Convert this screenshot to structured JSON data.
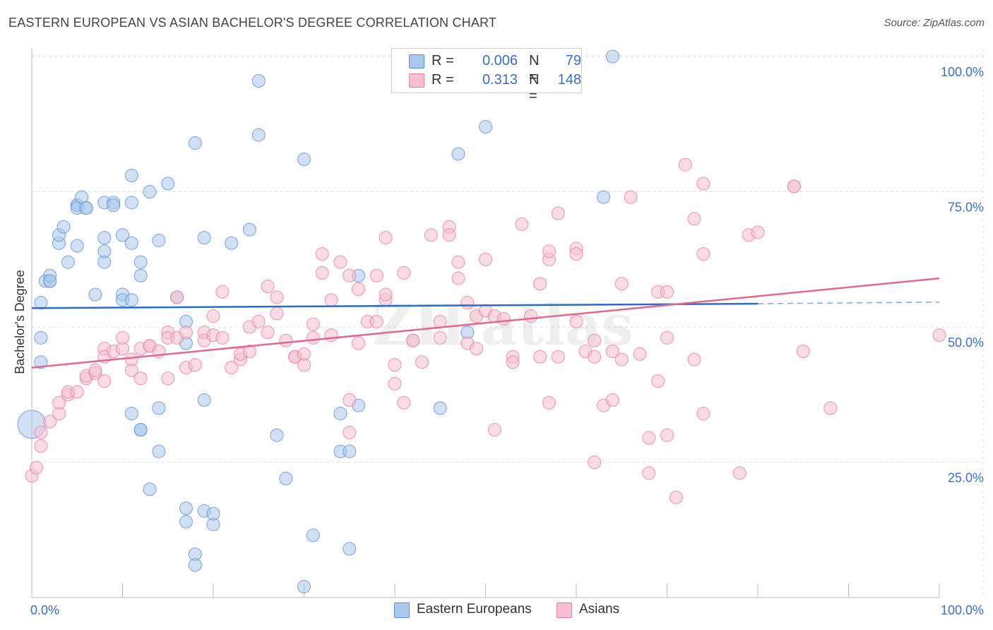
{
  "title": "EASTERN EUROPEAN VS ASIAN BACHELOR'S DEGREE CORRELATION CHART",
  "source": "Source: ZipAtlas.com",
  "colors": {
    "blue_fill": "#aac8ee",
    "blue_stroke": "#5b8fd6",
    "blue_line": "#2b6cc9",
    "pink_fill": "#f7bfd0",
    "pink_stroke": "#e97a9d",
    "pink_line": "#e06891",
    "tick_label": "#3a6fc4",
    "grid": "#dddddd"
  },
  "legend": {
    "rows": [
      {
        "r_label": "R =",
        "r_value": "0.006",
        "n_label": "N =",
        "n_value": "79",
        "series": "blue"
      },
      {
        "r_label": "R =",
        "r_value": "0.313",
        "n_label": "N =",
        "n_value": "148",
        "series": "pink"
      }
    ]
  },
  "bottom_legend": {
    "eastern": "Eastern Europeans",
    "asians": "Asians"
  },
  "chart_data": {
    "type": "scatter",
    "title": "EASTERN EUROPEAN VS ASIAN BACHELOR'S DEGREE CORRELATION CHART",
    "xlabel": "",
    "ylabel": "Bachelor's Degree",
    "xlim": [
      0,
      100
    ],
    "ylim": [
      0,
      100
    ],
    "x_tick_labels": [
      {
        "value": 0,
        "label": "0.0%"
      },
      {
        "value": 100,
        "label": "100.0%"
      }
    ],
    "y_tick_labels": [
      {
        "value": 25,
        "label": "25.0%"
      },
      {
        "value": 50,
        "label": "50.0%"
      },
      {
        "value": 75,
        "label": "75.0%"
      },
      {
        "value": 100,
        "label": "100.0%"
      }
    ],
    "watermark": "ZIPatlas",
    "series": [
      {
        "name": "Eastern Europeans",
        "color": "blue",
        "trend": {
          "x0": 0,
          "y0": 53.5,
          "x1": 80,
          "y1": 54.3,
          "dash_to_x": 100,
          "dash_to_y": 54.6
        },
        "points": [
          [
            0,
            32,
            "big"
          ],
          [
            1,
            43.5
          ],
          [
            1,
            48
          ],
          [
            1,
            54.5
          ],
          [
            1.5,
            58.5
          ],
          [
            2,
            58.5
          ],
          [
            2,
            59.5
          ],
          [
            2,
            58.5
          ],
          [
            3,
            65.5
          ],
          [
            3,
            67
          ],
          [
            3.5,
            68.5
          ],
          [
            4,
            62
          ],
          [
            5,
            72.5
          ],
          [
            5,
            72.5
          ],
          [
            5,
            72
          ],
          [
            5,
            65
          ],
          [
            5.5,
            74
          ],
          [
            6,
            72
          ],
          [
            6,
            72
          ],
          [
            7,
            56
          ],
          [
            8,
            73
          ],
          [
            8,
            62
          ],
          [
            8,
            66.5
          ],
          [
            8,
            64
          ],
          [
            9,
            73
          ],
          [
            9,
            72.5
          ],
          [
            10,
            67
          ],
          [
            10,
            56
          ],
          [
            10,
            55
          ],
          [
            11,
            78
          ],
          [
            11,
            65.5
          ],
          [
            11,
            73
          ],
          [
            11,
            55
          ],
          [
            12,
            62
          ],
          [
            11,
            34
          ],
          [
            12,
            31
          ],
          [
            12,
            59.5
          ],
          [
            12,
            31
          ],
          [
            13,
            20
          ],
          [
            13,
            75
          ],
          [
            14,
            35
          ],
          [
            14,
            66
          ],
          [
            14,
            27
          ],
          [
            15,
            76.5
          ],
          [
            16,
            55.5
          ],
          [
            17,
            51
          ],
          [
            17,
            47
          ],
          [
            17,
            14
          ],
          [
            17,
            16.5
          ],
          [
            18,
            84
          ],
          [
            18,
            8
          ],
          [
            18,
            6
          ],
          [
            19,
            36.5
          ],
          [
            19,
            66.5
          ],
          [
            19,
            16
          ],
          [
            20,
            13.5
          ],
          [
            20,
            15.5
          ],
          [
            22,
            65.5
          ],
          [
            24,
            68
          ],
          [
            25,
            85.5
          ],
          [
            25,
            95.5
          ],
          [
            27,
            30
          ],
          [
            28,
            22
          ],
          [
            30,
            81
          ],
          [
            31,
            11.5
          ],
          [
            30,
            2
          ],
          [
            34,
            27
          ],
          [
            34,
            34
          ],
          [
            35,
            9
          ],
          [
            35,
            27
          ],
          [
            36,
            59.5
          ],
          [
            36,
            35.5
          ],
          [
            45,
            35
          ],
          [
            47,
            82
          ],
          [
            48,
            49
          ],
          [
            50,
            87
          ],
          [
            63,
            74
          ],
          [
            64,
            100
          ]
        ]
      },
      {
        "name": "Asians",
        "color": "pink",
        "trend": {
          "x0": 0,
          "y0": 42.5,
          "x1": 100,
          "y1": 59
        },
        "points": [
          [
            0,
            22.5
          ],
          [
            0.5,
            24
          ],
          [
            1,
            28
          ],
          [
            1,
            30.5
          ],
          [
            2,
            32.5
          ],
          [
            3,
            34
          ],
          [
            3,
            36
          ],
          [
            4,
            37.5
          ],
          [
            4,
            38
          ],
          [
            5,
            38
          ],
          [
            6,
            40.5
          ],
          [
            6,
            41
          ],
          [
            7,
            41.5
          ],
          [
            7,
            42
          ],
          [
            8,
            40
          ],
          [
            8,
            46
          ],
          [
            8,
            44.5
          ],
          [
            9,
            45.5
          ],
          [
            10,
            46
          ],
          [
            10,
            48
          ],
          [
            11,
            42
          ],
          [
            11,
            44
          ],
          [
            12,
            40.5
          ],
          [
            12,
            46
          ],
          [
            13,
            46.5
          ],
          [
            13,
            46.5
          ],
          [
            14,
            45.5
          ],
          [
            15,
            40.5
          ],
          [
            15,
            49
          ],
          [
            15,
            48
          ],
          [
            16,
            48
          ],
          [
            16,
            55.5
          ],
          [
            17,
            49
          ],
          [
            17,
            42.5
          ],
          [
            18,
            43
          ],
          [
            19,
            49
          ],
          [
            19,
            47.5
          ],
          [
            20,
            48.5
          ],
          [
            20,
            52
          ],
          [
            21,
            48
          ],
          [
            21,
            56.5
          ],
          [
            22,
            42.5
          ],
          [
            23,
            44
          ],
          [
            23,
            45
          ],
          [
            24,
            50
          ],
          [
            24,
            45.5
          ],
          [
            25,
            51
          ],
          [
            26,
            49
          ],
          [
            26,
            57.5
          ],
          [
            27,
            52.5
          ],
          [
            27,
            55.5
          ],
          [
            28,
            47.5
          ],
          [
            29,
            44.5
          ],
          [
            29,
            44.5
          ],
          [
            30,
            45
          ],
          [
            30,
            43
          ],
          [
            31,
            48
          ],
          [
            31,
            50.5
          ],
          [
            32,
            63.5
          ],
          [
            32,
            60
          ],
          [
            33,
            55
          ],
          [
            33,
            48.5
          ],
          [
            34,
            62
          ],
          [
            35,
            36.5
          ],
          [
            35,
            59.5
          ],
          [
            35,
            30.5
          ],
          [
            36,
            47
          ],
          [
            36,
            57
          ],
          [
            37,
            51
          ],
          [
            38,
            59.5
          ],
          [
            38,
            51
          ],
          [
            39,
            55
          ],
          [
            39,
            56
          ],
          [
            39,
            66.5
          ],
          [
            40,
            43
          ],
          [
            40,
            39.5
          ],
          [
            41,
            36
          ],
          [
            41,
            60
          ],
          [
            42,
            47.5
          ],
          [
            42,
            47.5
          ],
          [
            43,
            43.5
          ],
          [
            44,
            67
          ],
          [
            45,
            51
          ],
          [
            45,
            48
          ],
          [
            46,
            68.5
          ],
          [
            46,
            67
          ],
          [
            47,
            62
          ],
          [
            47,
            59
          ],
          [
            48,
            47
          ],
          [
            48,
            54.5
          ],
          [
            49,
            52
          ],
          [
            50,
            53
          ],
          [
            49,
            46
          ],
          [
            50,
            62.5
          ],
          [
            51,
            52
          ],
          [
            51,
            31
          ],
          [
            52,
            51.5
          ],
          [
            53,
            44.5
          ],
          [
            53,
            43.5
          ],
          [
            54,
            69
          ],
          [
            55,
            52
          ],
          [
            56,
            44.5
          ],
          [
            56,
            58
          ],
          [
            57,
            36
          ],
          [
            57,
            62.5
          ],
          [
            57,
            64
          ],
          [
            58,
            44.5
          ],
          [
            58,
            71
          ],
          [
            60,
            64.5
          ],
          [
            60,
            63.5
          ],
          [
            60,
            51
          ],
          [
            61,
            45.5
          ],
          [
            62,
            47.5
          ],
          [
            62,
            25
          ],
          [
            62,
            44.5
          ],
          [
            63,
            35.5
          ],
          [
            64,
            36.5
          ],
          [
            64,
            45.5
          ],
          [
            65,
            44
          ],
          [
            65,
            58
          ],
          [
            66,
            74
          ],
          [
            67,
            45
          ],
          [
            68,
            29.5
          ],
          [
            68,
            23
          ],
          [
            69,
            40
          ],
          [
            69,
            56.5
          ],
          [
            70,
            48
          ],
          [
            70,
            56.5
          ],
          [
            70,
            30
          ],
          [
            71,
            18.5
          ],
          [
            72,
            80
          ],
          [
            73,
            70
          ],
          [
            73,
            44
          ],
          [
            74,
            34
          ],
          [
            74,
            63.5
          ],
          [
            74,
            76.5
          ],
          [
            78,
            23
          ],
          [
            79,
            67
          ],
          [
            80,
            67.5
          ],
          [
            84,
            76
          ],
          [
            84,
            76
          ],
          [
            85,
            45.5
          ],
          [
            88,
            35
          ],
          [
            100,
            48.5
          ]
        ]
      }
    ]
  }
}
